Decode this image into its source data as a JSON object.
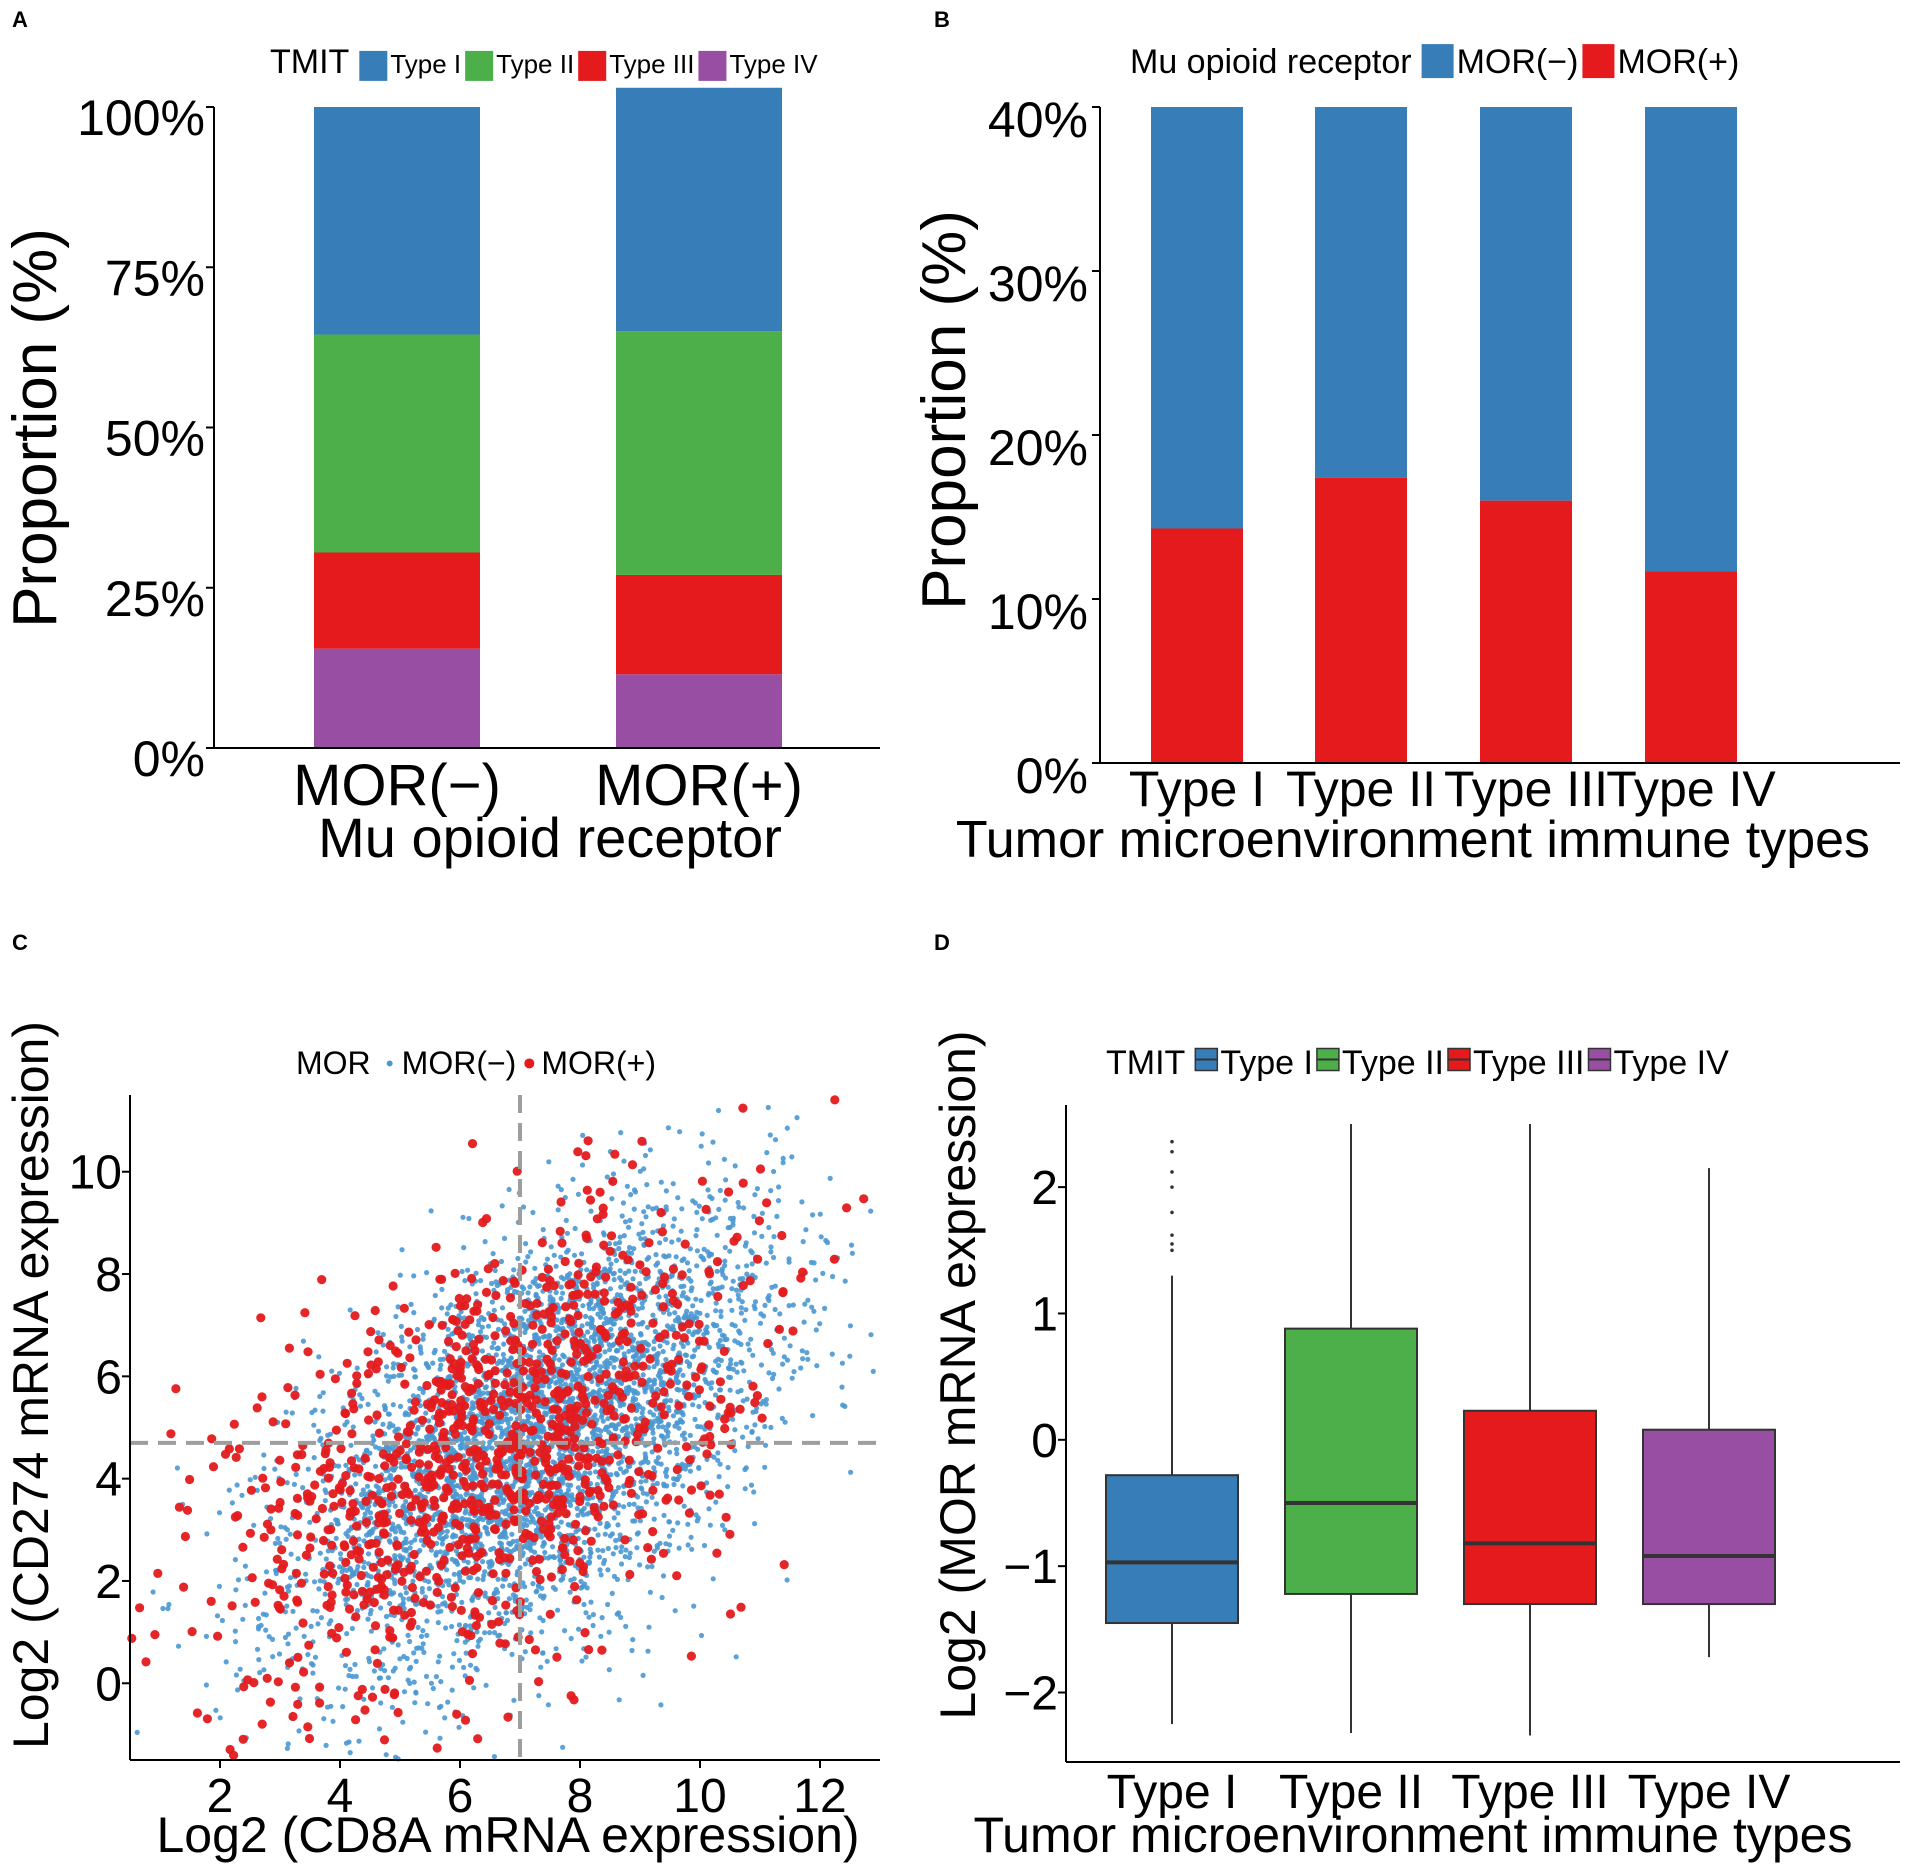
{
  "chart_data": [
    {
      "panel": "A",
      "type": "bar",
      "stacked": true,
      "categories": [
        "MOR(−)",
        "MOR(+)"
      ],
      "legend_title": "TMIT",
      "series": [
        {
          "name": "Type I",
          "color": "#377EB8",
          "values": [
            35.5,
            38
          ]
        },
        {
          "name": "Type II",
          "color": "#4DAF4A",
          "values": [
            34,
            38
          ]
        },
        {
          "name": "Type III",
          "color": "#E41A1C",
          "values": [
            15,
            15.5
          ]
        },
        {
          "name": "Type IV",
          "color": "#984EA3",
          "values": [
            15.5,
            11.5
          ]
        }
      ],
      "xlabel": "Mu opioid receptor",
      "ylabel": "Proportion (%)",
      "ylim": [
        0,
        100
      ],
      "yticks": [
        "0%",
        "25%",
        "50%",
        "75%",
        "100%"
      ],
      "legend_position": "top"
    },
    {
      "panel": "B",
      "type": "bar",
      "stacked": true,
      "categories": [
        "Type I",
        "Type II",
        "Type III",
        "Type IV"
      ],
      "legend_title": "Mu opioid receptor",
      "series": [
        {
          "name": "MOR(−)",
          "color": "#377EB8",
          "values": [
            25.7,
            22.6,
            24,
            28.3
          ]
        },
        {
          "name": "MOR(+)",
          "color": "#E41A1C",
          "values": [
            14.3,
            17.4,
            16,
            11.7
          ]
        }
      ],
      "xlabel": "Tumor microenvironment immune types",
      "ylabel": "Proportion (%)",
      "ylim": [
        0,
        40
      ],
      "yticks": [
        "0%",
        "10%",
        "20%",
        "30%",
        "40%"
      ],
      "legend_position": "top"
    },
    {
      "panel": "C",
      "type": "scatter",
      "legend_title": "MOR",
      "series": [
        {
          "name": "MOR(−)",
          "color": "#4A98D2",
          "n_points": 4200,
          "center": [
            7.3,
            4.8
          ],
          "spread": [
            2.0,
            2.2
          ],
          "correlation": 0.55
        },
        {
          "name": "MOR(+)",
          "color": "#E41A1C",
          "n_points": 1100,
          "center": [
            6.5,
            4.6
          ],
          "spread": [
            2.1,
            2.3
          ],
          "correlation": 0.5
        }
      ],
      "reference_lines": {
        "x": 7,
        "y": 4.7
      },
      "xlabel": "Log2 (CD8A mRNA expression)",
      "ylabel": "Log2 (CD274 mRNA expression)",
      "xlim": [
        0.5,
        13
      ],
      "ylim": [
        -1.5,
        11.5
      ],
      "xticks": [
        2,
        4,
        6,
        8,
        10,
        12
      ],
      "yticks": [
        0,
        2,
        4,
        6,
        8,
        10
      ],
      "legend_position": "top"
    },
    {
      "panel": "D",
      "type": "box",
      "legend_title": "TMIT",
      "categories": [
        "Type I",
        "Type II",
        "Type III",
        "Type IV"
      ],
      "boxes": [
        {
          "name": "Type I",
          "color": "#377EB8",
          "whisker_low": -2.25,
          "q1": -1.45,
          "median": -0.97,
          "q3": -0.28,
          "whisker_high": 1.3,
          "outliers": [
            1.5,
            1.55,
            1.62,
            1.8,
            2.0,
            2.12,
            2.28,
            2.36
          ]
        },
        {
          "name": "Type II",
          "color": "#4DAF4A",
          "whisker_low": -2.32,
          "q1": -1.22,
          "median": -0.5,
          "q3": 0.88,
          "whisker_high": 2.5,
          "outliers": []
        },
        {
          "name": "Type III",
          "color": "#E41A1C",
          "whisker_low": -2.34,
          "q1": -1.3,
          "median": -0.82,
          "q3": 0.23,
          "whisker_high": 2.5,
          "outliers": []
        },
        {
          "name": "Type IV",
          "color": "#984EA3",
          "whisker_low": -1.72,
          "q1": -1.3,
          "median": -0.92,
          "q3": 0.08,
          "whisker_high": 2.15,
          "outliers": []
        }
      ],
      "xlabel": "Tumor microenvironment immune types",
      "ylabel": "Log2 (MOR mRNA expression)",
      "ylim": [
        -2.55,
        2.65
      ],
      "yticks": [
        -2,
        -1,
        0,
        1,
        2
      ],
      "ytick_labels": [
        "−2",
        "−1",
        "0",
        "1",
        "2"
      ],
      "legend_position": "top"
    }
  ]
}
